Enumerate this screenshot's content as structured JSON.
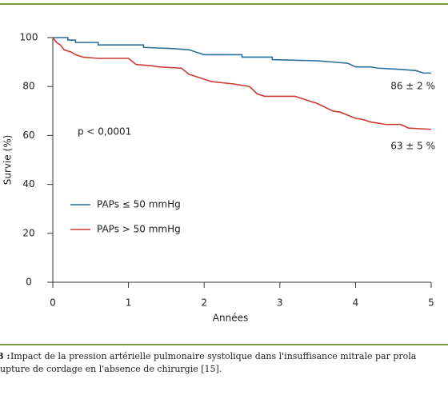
{
  "chart_data": {
    "type": "line",
    "xlabel": "Années",
    "ylabel": "Survie (%)",
    "xlim": [
      0,
      5
    ],
    "xticks": [
      0,
      1,
      2,
      3,
      4,
      5
    ],
    "ylim": [
      0,
      100
    ],
    "yticks": [
      0,
      20,
      40,
      60,
      80,
      100
    ],
    "annotations": [
      "p < 0,0001",
      "86 ± 2 %",
      "63 ± 5 %"
    ],
    "series": [
      {
        "name": "PAPs ≤ 50 mmHg",
        "color": "#2b6f9c",
        "x": [
          0,
          0.2,
          0.2,
          0.3,
          0.3,
          0.6,
          0.6,
          1.2,
          1.2,
          1.6,
          1.8,
          1.9,
          2.0,
          2.5,
          2.5,
          2.9,
          2.9,
          3.5,
          3.9,
          4.0,
          4.2,
          4.3,
          4.6,
          4.8,
          4.9,
          5.0
        ],
        "values": [
          100,
          100,
          99,
          99,
          98,
          98,
          97,
          97,
          96,
          95.5,
          95,
          94,
          93,
          93,
          92,
          92,
          91,
          90.5,
          89.5,
          88,
          88,
          87.5,
          87,
          86.5,
          85.5,
          85.5
        ]
      },
      {
        "name": "PAPs > 50 mmHg",
        "color": "#cc3a32",
        "x": [
          0,
          0.05,
          0.1,
          0.15,
          0.25,
          0.3,
          0.4,
          0.6,
          1.0,
          1.1,
          1.3,
          1.4,
          1.7,
          1.8,
          2.0,
          2.1,
          2.4,
          2.6,
          2.7,
          2.8,
          3.2,
          3.3,
          3.5,
          3.7,
          3.8,
          4.0,
          4.1,
          4.2,
          4.4,
          4.6,
          4.7,
          5.0
        ],
        "values": [
          100,
          98,
          97,
          95,
          94,
          93,
          92,
          91.5,
          91.5,
          89,
          88.5,
          88,
          87.5,
          85,
          83,
          82,
          81,
          80,
          77,
          76,
          76,
          75,
          73,
          70,
          69.5,
          67,
          66.5,
          65.5,
          64.5,
          64.5,
          63,
          62.5
        ]
      }
    ]
  },
  "caption": {
    "number": "3 :",
    "lines": [
      "Impact de la pression artérielle pulmonaire systolique dans l'insuffisance mitrale par prola",
      "upture de cordage en l'absence de chirurgie [15]."
    ]
  }
}
